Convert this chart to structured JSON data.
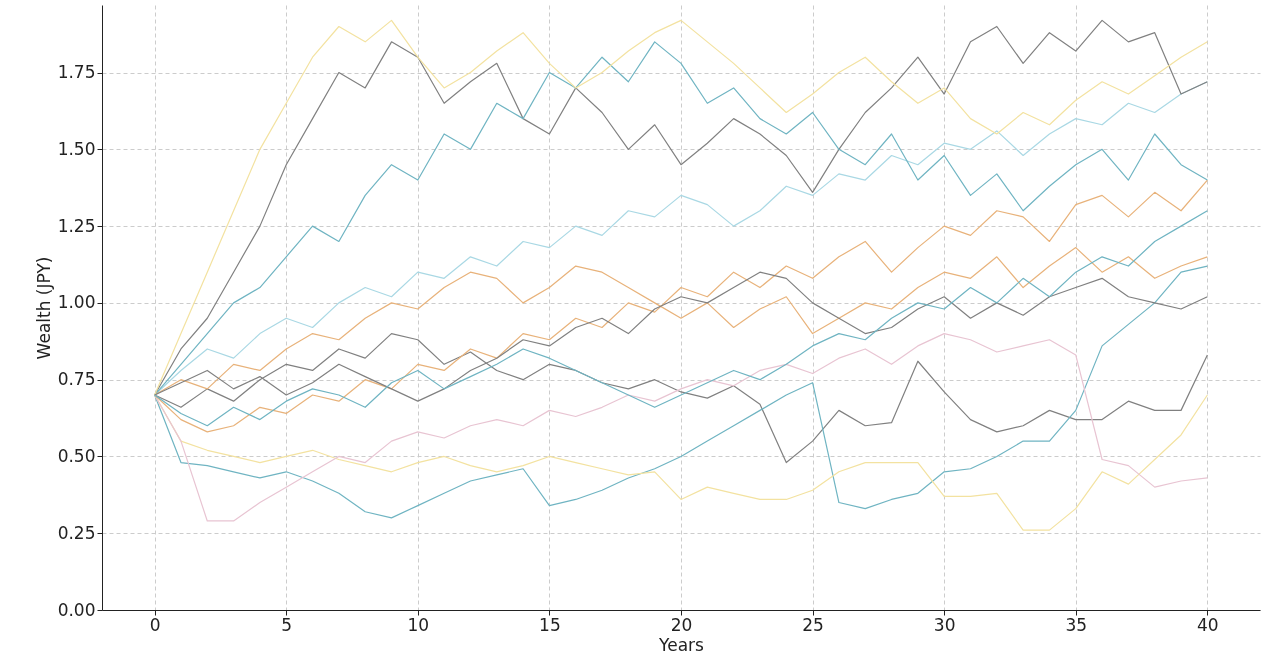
{
  "chart_data": {
    "type": "line",
    "xlabel": "Years",
    "ylabel": "Wealth (JPY)",
    "x": [
      0,
      1,
      2,
      3,
      4,
      5,
      6,
      7,
      8,
      9,
      10,
      11,
      12,
      13,
      14,
      15,
      16,
      17,
      18,
      19,
      20,
      21,
      22,
      23,
      24,
      25,
      26,
      27,
      28,
      29,
      30,
      31,
      32,
      33,
      34,
      35,
      36,
      37,
      38,
      39,
      40
    ],
    "xlim": [
      -2,
      42
    ],
    "xticks": [
      0,
      5,
      10,
      15,
      20,
      25,
      30,
      35,
      40
    ],
    "ylim": [
      0,
      1.97
    ],
    "yticks": [
      {
        "value": 0,
        "label": "0.00"
      },
      {
        "value": 0.25,
        "label": "0.25"
      },
      {
        "value": 0.5,
        "label": "0.50"
      },
      {
        "value": 0.75,
        "label": "0.75"
      },
      {
        "value": 1,
        "label": "1.00"
      },
      {
        "value": 1.25,
        "label": "1.25"
      },
      {
        "value": 1.5,
        "label": "1.50"
      },
      {
        "value": 1.75,
        "label": "1.75"
      }
    ],
    "grid": true,
    "series": [
      {
        "color": "#808080",
        "values": [
          0.7,
          0.66,
          0.72,
          0.68,
          0.75,
          0.8,
          0.78,
          0.85,
          0.82,
          0.9,
          0.88,
          0.8,
          0.84,
          0.78,
          0.75,
          0.8,
          0.78,
          0.74,
          0.72,
          0.75,
          0.71,
          0.69,
          0.73,
          0.67,
          0.48,
          0.55,
          0.65,
          0.6,
          0.61,
          0.81,
          0.71,
          0.62,
          0.58,
          0.6,
          0.65,
          0.62,
          0.62,
          0.68,
          0.65,
          0.65,
          0.83
        ]
      },
      {
        "color": "#6fb4c2",
        "values": [
          0.7,
          0.48,
          0.47,
          0.45,
          0.43,
          0.45,
          0.42,
          0.38,
          0.32,
          0.3,
          0.34,
          0.38,
          0.42,
          0.44,
          0.46,
          0.34,
          0.36,
          0.39,
          0.43,
          0.46,
          0.5,
          0.55,
          0.6,
          0.65,
          0.7,
          0.74,
          0.35,
          0.33,
          0.36,
          0.38,
          0.45,
          0.46,
          0.5,
          0.55,
          0.55,
          0.65,
          0.86,
          0.93,
          1.0,
          1.1,
          1.12
        ]
      },
      {
        "color": "#f3e2a0",
        "values": [
          0.7,
          0.55,
          0.52,
          0.5,
          0.48,
          0.5,
          0.52,
          0.49,
          0.47,
          0.45,
          0.48,
          0.5,
          0.47,
          0.45,
          0.47,
          0.5,
          0.48,
          0.46,
          0.44,
          0.45,
          0.36,
          0.4,
          0.38,
          0.36,
          0.36,
          0.39,
          0.45,
          0.48,
          0.48,
          0.48,
          0.37,
          0.37,
          0.38,
          0.26,
          0.26,
          0.33,
          0.45,
          0.41,
          0.49,
          0.57,
          0.7
        ]
      },
      {
        "color": "#e8c4d2",
        "values": [
          0.7,
          0.55,
          0.29,
          0.29,
          0.35,
          0.4,
          0.45,
          0.5,
          0.48,
          0.55,
          0.58,
          0.56,
          0.6,
          0.62,
          0.6,
          0.65,
          0.63,
          0.66,
          0.7,
          0.68,
          0.72,
          0.75,
          0.73,
          0.78,
          0.8,
          0.77,
          0.82,
          0.85,
          0.8,
          0.86,
          0.9,
          0.88,
          0.84,
          0.86,
          0.88,
          0.83,
          0.49,
          0.47,
          0.4,
          0.42,
          0.43
        ]
      },
      {
        "color": "#e8b27a",
        "values": [
          0.7,
          0.62,
          0.58,
          0.6,
          0.66,
          0.64,
          0.7,
          0.68,
          0.75,
          0.72,
          0.8,
          0.78,
          0.85,
          0.82,
          0.9,
          0.88,
          0.95,
          0.92,
          1.0,
          0.97,
          1.05,
          1.02,
          1.1,
          1.05,
          1.12,
          1.08,
          1.15,
          1.2,
          1.1,
          1.18,
          1.25,
          1.22,
          1.3,
          1.28,
          1.2,
          1.32,
          1.35,
          1.28,
          1.36,
          1.3,
          1.4
        ]
      },
      {
        "color": "#a9d8e4",
        "values": [
          0.7,
          0.78,
          0.85,
          0.82,
          0.9,
          0.95,
          0.92,
          1.0,
          1.05,
          1.02,
          1.1,
          1.08,
          1.15,
          1.12,
          1.2,
          1.18,
          1.25,
          1.22,
          1.3,
          1.28,
          1.35,
          1.32,
          1.25,
          1.3,
          1.38,
          1.35,
          1.42,
          1.4,
          1.48,
          1.45,
          1.52,
          1.5,
          1.56,
          1.48,
          1.55,
          1.6,
          1.58,
          1.65,
          1.62,
          1.68,
          1.72
        ]
      },
      {
        "color": "#808080",
        "values": [
          0.7,
          0.85,
          0.95,
          1.1,
          1.25,
          1.45,
          1.6,
          1.75,
          1.7,
          1.85,
          1.8,
          1.65,
          1.72,
          1.78,
          1.6,
          1.55,
          1.7,
          1.62,
          1.5,
          1.58,
          1.45,
          1.52,
          1.6,
          1.55,
          1.48,
          1.36,
          1.5,
          1.62,
          1.7,
          1.8,
          1.68,
          1.85,
          1.9,
          1.78,
          1.88,
          1.82,
          1.92,
          1.85,
          1.88,
          1.68,
          1.72
        ]
      },
      {
        "color": "#6fb4c2",
        "values": [
          0.7,
          0.8,
          0.9,
          1.0,
          1.05,
          1.15,
          1.25,
          1.2,
          1.35,
          1.45,
          1.4,
          1.55,
          1.5,
          1.65,
          1.6,
          1.75,
          1.7,
          1.8,
          1.72,
          1.85,
          1.78,
          1.65,
          1.7,
          1.6,
          1.55,
          1.62,
          1.5,
          1.45,
          1.55,
          1.4,
          1.48,
          1.35,
          1.42,
          1.3,
          1.38,
          1.45,
          1.5,
          1.4,
          1.55,
          1.45,
          1.4
        ]
      },
      {
        "color": "#e8b27a",
        "values": [
          0.7,
          0.75,
          0.72,
          0.8,
          0.78,
          0.85,
          0.9,
          0.88,
          0.95,
          1.0,
          0.98,
          1.05,
          1.1,
          1.08,
          1.0,
          1.05,
          1.12,
          1.1,
          1.05,
          1.0,
          0.95,
          1.0,
          0.92,
          0.98,
          1.02,
          0.9,
          0.95,
          1.0,
          0.98,
          1.05,
          1.1,
          1.08,
          1.15,
          1.05,
          1.12,
          1.18,
          1.1,
          1.15,
          1.08,
          1.12,
          1.15
        ]
      },
      {
        "color": "#f3e2a0",
        "values": [
          0.7,
          0.9,
          1.1,
          1.3,
          1.5,
          1.65,
          1.8,
          1.9,
          1.85,
          1.92,
          1.8,
          1.7,
          1.75,
          1.82,
          1.88,
          1.78,
          1.7,
          1.75,
          1.82,
          1.88,
          1.92,
          1.85,
          1.78,
          1.7,
          1.62,
          1.68,
          1.75,
          1.8,
          1.72,
          1.65,
          1.7,
          1.6,
          1.55,
          1.62,
          1.58,
          1.66,
          1.72,
          1.68,
          1.74,
          1.8,
          1.85
        ]
      },
      {
        "color": "#808080",
        "values": [
          0.7,
          0.74,
          0.78,
          0.72,
          0.76,
          0.7,
          0.74,
          0.8,
          0.76,
          0.72,
          0.68,
          0.72,
          0.78,
          0.82,
          0.88,
          0.86,
          0.92,
          0.95,
          0.9,
          0.98,
          1.02,
          1.0,
          1.05,
          1.1,
          1.08,
          1.0,
          0.95,
          0.9,
          0.92,
          0.98,
          1.02,
          0.95,
          1.0,
          0.96,
          1.02,
          1.05,
          1.08,
          1.02,
          1.0,
          0.98,
          1.02
        ]
      },
      {
        "color": "#6fb4c2",
        "values": [
          0.7,
          0.64,
          0.6,
          0.66,
          0.62,
          0.68,
          0.72,
          0.7,
          0.66,
          0.74,
          0.78,
          0.72,
          0.76,
          0.8,
          0.85,
          0.82,
          0.78,
          0.74,
          0.7,
          0.66,
          0.7,
          0.74,
          0.78,
          0.75,
          0.8,
          0.86,
          0.9,
          0.88,
          0.95,
          1.0,
          0.98,
          1.05,
          1.0,
          1.08,
          1.02,
          1.1,
          1.15,
          1.12,
          1.2,
          1.25,
          1.3
        ]
      }
    ]
  }
}
